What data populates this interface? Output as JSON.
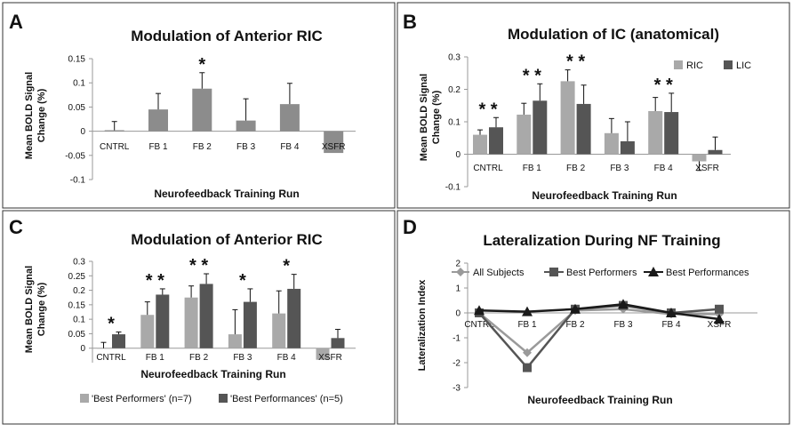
{
  "colors": {
    "gray_light": "#a9a9a9",
    "gray_mid": "#8c8c8c",
    "gray_dark": "#555555",
    "gray_darker": "#3d3d3d",
    "black": "#111111",
    "line_all": "#9a9a9a",
    "line_best": "#555555",
    "line_perf": "#1a1a1a",
    "axis": "#999999",
    "border": "#333333"
  },
  "chart_data": [
    {
      "panel_letter": "A",
      "type": "bar",
      "title": "Modulation of Anterior RIC",
      "xlabel": "Neurofeedback Training Run",
      "ylabel_line1": "Mean BOLD Signal",
      "ylabel_line2": "Change (%)",
      "ylim": [
        -0.1,
        0.15
      ],
      "yticks": [
        -0.1,
        -0.05,
        0,
        0.05,
        0.1,
        0.15
      ],
      "ytick_labels": [
        "-0.1",
        "-0.05",
        "0",
        "0.05",
        "0.1",
        "0.15"
      ],
      "categories": [
        "CNTRL",
        "FB 1",
        "FB 2",
        "FB 3",
        "FB 4",
        "XSFR"
      ],
      "series": [
        {
          "name": "Anterior RIC",
          "values": [
            0.002,
            0.045,
            0.088,
            0.022,
            0.056,
            -0.045
          ],
          "errors": [
            0.018,
            0.033,
            0.033,
            0.045,
            0.043,
            0.0
          ]
        }
      ],
      "stars": [
        "",
        "",
        "*",
        "",
        "",
        ""
      ]
    },
    {
      "panel_letter": "B",
      "type": "bar",
      "title": "Modulation of IC (anatomical)",
      "xlabel": "Neurofeedback Training Run",
      "ylabel_line1": "Mean BOLD Signal",
      "ylabel_line2": "Change (%)",
      "ylim": [
        -0.1,
        0.3
      ],
      "yticks": [
        -0.1,
        0,
        0.1,
        0.2,
        0.3
      ],
      "ytick_labels": [
        "-0.1",
        "0",
        "0.1",
        "0.2",
        "0.3"
      ],
      "categories": [
        "CNTRL",
        "FB 1",
        "FB 2",
        "FB 3",
        "FB 4",
        "XSFR"
      ],
      "series": [
        {
          "name": "RIC",
          "values": [
            0.06,
            0.122,
            0.225,
            0.065,
            0.133,
            -0.022
          ],
          "errors": [
            0.015,
            0.035,
            0.035,
            0.045,
            0.042,
            0.028
          ]
        },
        {
          "name": "LIC",
          "values": [
            0.083,
            0.165,
            0.155,
            0.04,
            0.13,
            0.013
          ],
          "errors": [
            0.03,
            0.052,
            0.058,
            0.06,
            0.058,
            0.04
          ]
        }
      ],
      "stars": [
        "* *",
        "* *",
        "* *",
        "",
        "* *",
        ""
      ]
    },
    {
      "panel_letter": "C",
      "type": "bar",
      "title": "Modulation of Anterior RIC",
      "xlabel": "Neurofeedback Training Run",
      "ylabel_line1": "Mean BOLD Signal",
      "ylabel_line2": "Change (%)",
      "ylim": [
        -0.05,
        0.3
      ],
      "yticks": [
        0,
        0.05,
        0.1,
        0.15,
        0.2,
        0.25,
        0.3
      ],
      "ytick_labels": [
        "0",
        "0.05",
        "0.1",
        "0.15",
        "0.2",
        "0.25",
        "0.3"
      ],
      "categories": [
        "CNTRL",
        "FB 1",
        "FB 2",
        "FB 3",
        "FB 4",
        "XSFR"
      ],
      "series": [
        {
          "name": "'Best Performers' (n=7)",
          "values": [
            0.0,
            0.115,
            0.175,
            0.048,
            0.12,
            -0.04
          ],
          "errors": [
            0.02,
            0.045,
            0.04,
            0.085,
            0.078,
            0.0
          ]
        },
        {
          "name": "'Best Performances' (n=5)",
          "values": [
            0.048,
            0.185,
            0.222,
            0.16,
            0.205,
            0.035
          ],
          "errors": [
            0.008,
            0.02,
            0.035,
            0.045,
            0.05,
            0.03
          ]
        }
      ],
      "stars": [
        "*",
        "* *",
        "* *",
        "*",
        "*",
        ""
      ]
    },
    {
      "panel_letter": "D",
      "type": "line",
      "title": "Lateralization During NF Training",
      "xlabel": "Neurofeedback Training Run",
      "ylabel": "Lateralization Index",
      "ylim": [
        -3,
        2
      ],
      "yticks": [
        -3,
        -2,
        -1,
        0,
        1,
        2
      ],
      "ytick_labels": [
        "-3",
        "-2",
        "-1",
        "0",
        "1",
        "2"
      ],
      "categories": [
        "CNTRL",
        "FB 1",
        "FB 2",
        "FB 3",
        "FB 4",
        "XSFR"
      ],
      "series": [
        {
          "name": "All Subjects",
          "marker": "diamond",
          "values": [
            0.0,
            -1.6,
            0.1,
            0.15,
            -0.05,
            -0.05
          ]
        },
        {
          "name": "Best Performers",
          "marker": "square",
          "values": [
            0.0,
            -2.2,
            0.15,
            0.3,
            0.0,
            0.15
          ]
        },
        {
          "name": "Best Performances",
          "marker": "triangle",
          "values": [
            0.1,
            0.05,
            0.15,
            0.35,
            0.0,
            -0.25
          ]
        }
      ]
    }
  ]
}
